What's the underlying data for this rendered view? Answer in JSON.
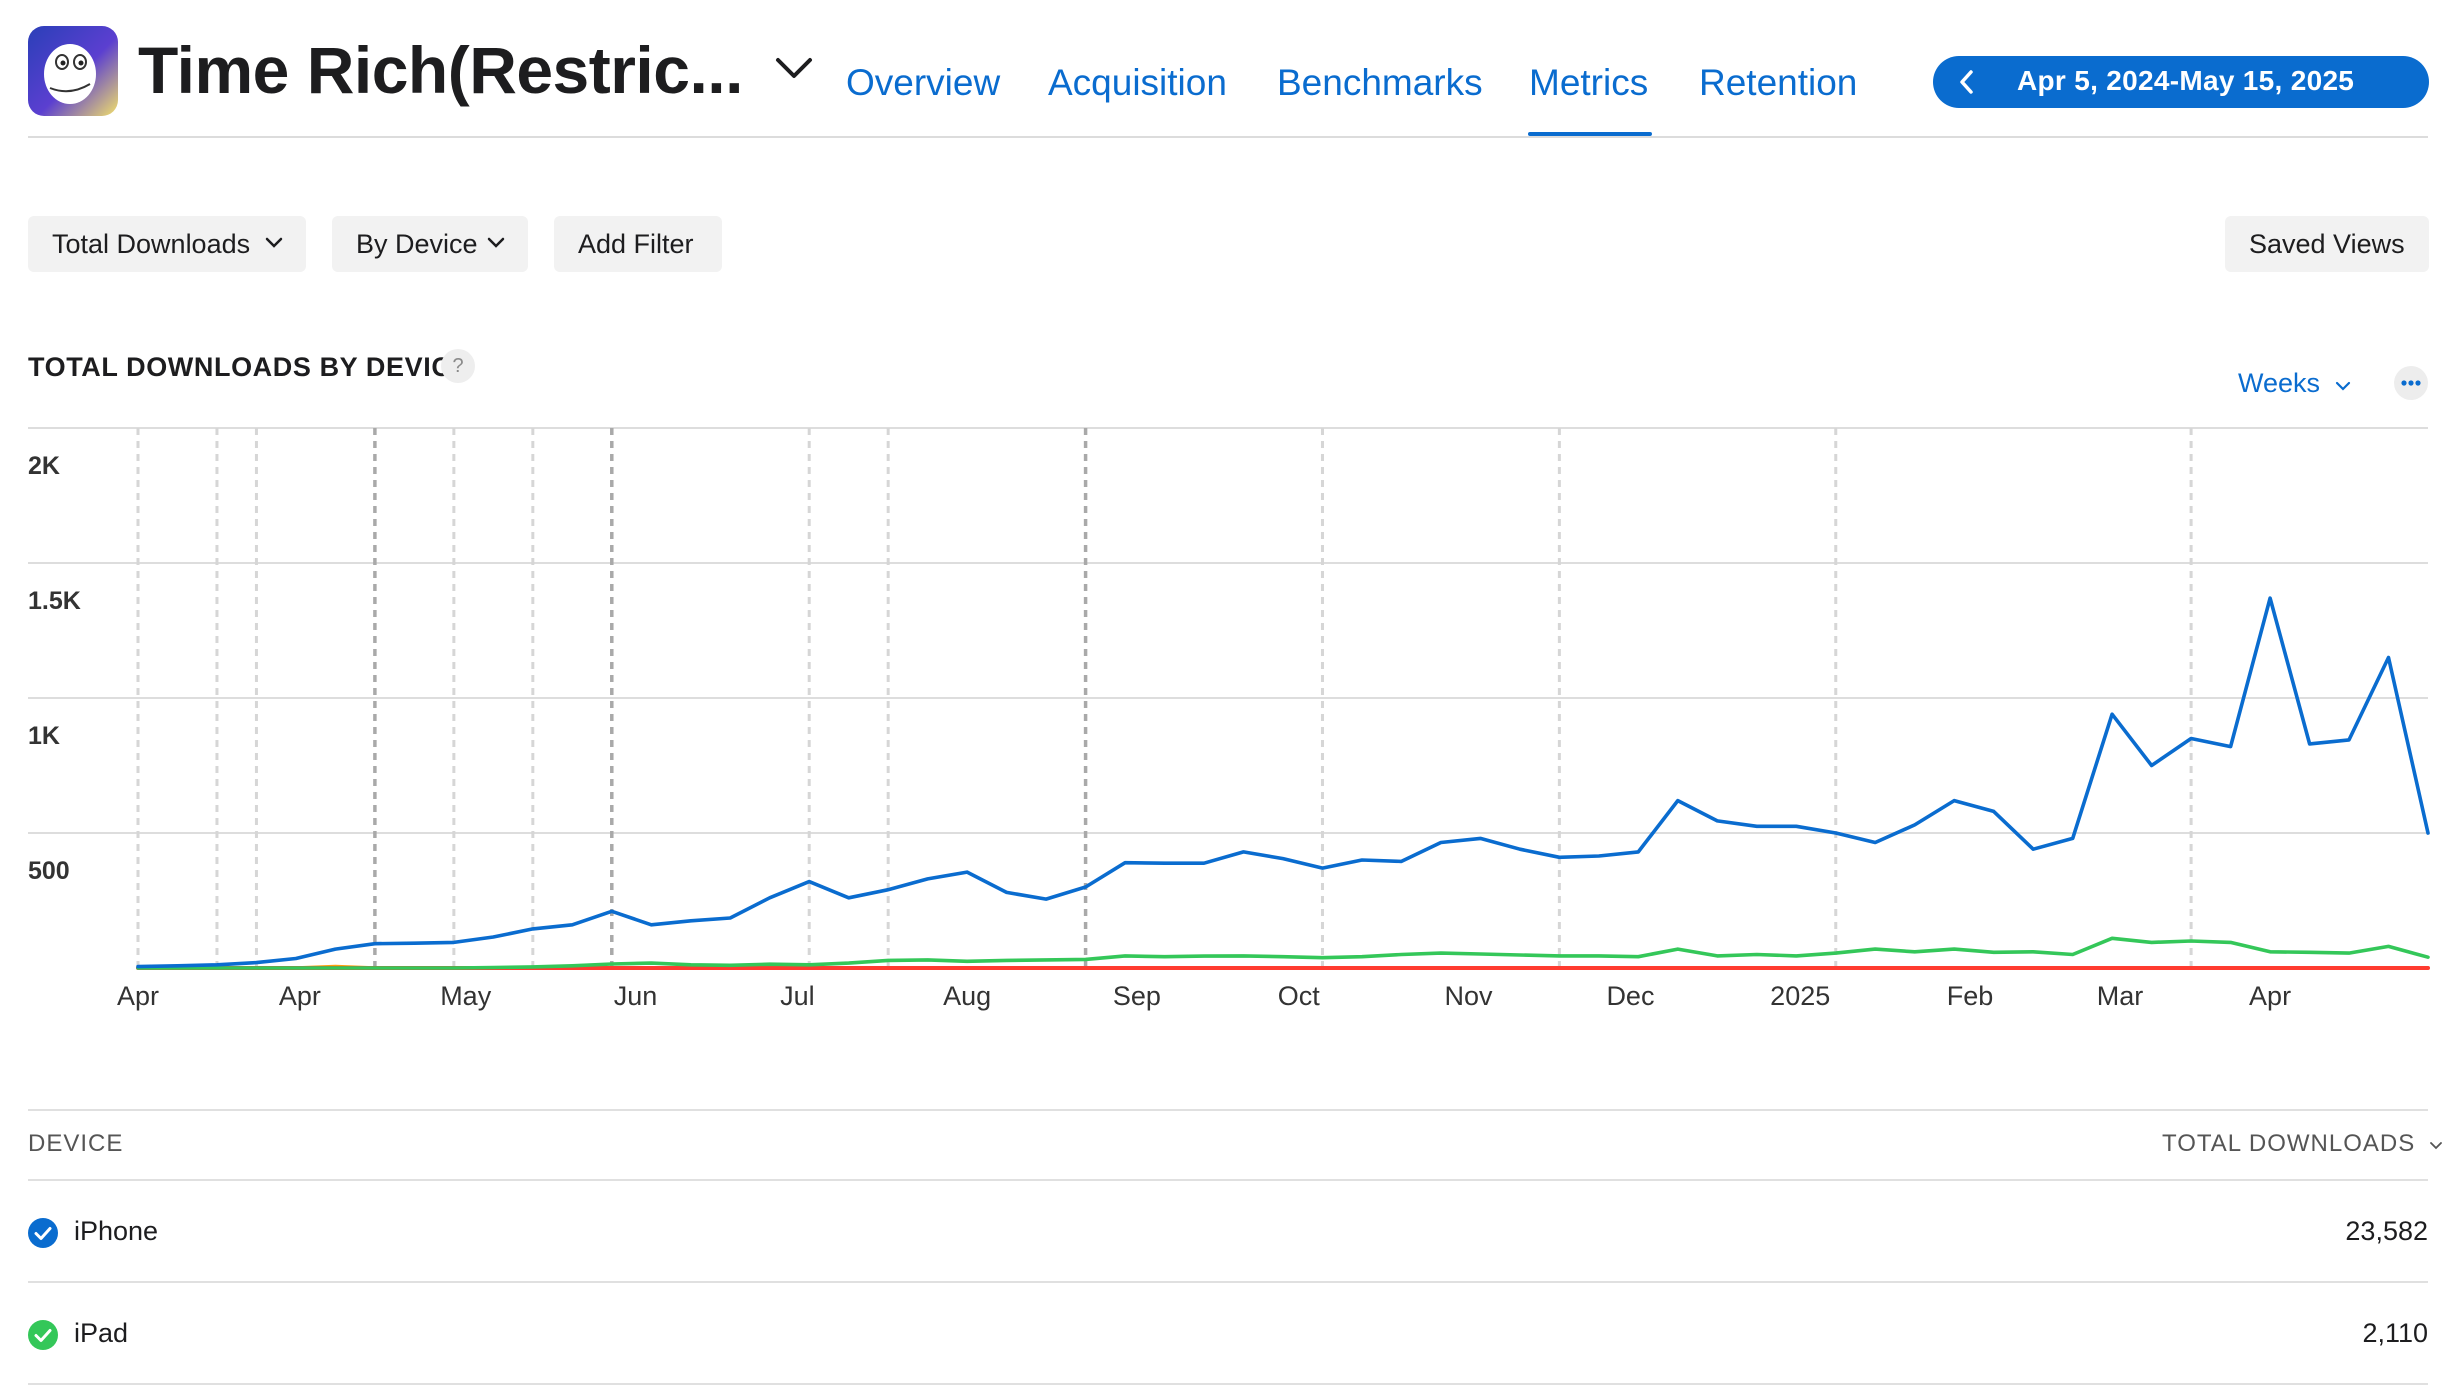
{
  "header": {
    "app_title": "Time Rich(Restric...",
    "tabs": [
      {
        "label": "Overview",
        "active": false
      },
      {
        "label": "Acquisition",
        "active": false
      },
      {
        "label": "Benchmarks",
        "active": false
      },
      {
        "label": "Metrics",
        "active": true
      },
      {
        "label": "Retention",
        "active": false
      }
    ],
    "date_range": "Apr 5, 2024-May 15, 2025"
  },
  "filters": {
    "measure": "Total Downloads",
    "group_by": "By Device",
    "add_filter": "Add Filter",
    "saved_views": "Saved Views"
  },
  "chart_header": {
    "title": "TOTAL DOWNLOADS BY DEVICE",
    "help": "?",
    "granularity": "Weeks"
  },
  "colors": {
    "accent": "#0a6ccf",
    "iphone": "#0a6ccf",
    "ipad": "#34c759",
    "other": "#ff3b30",
    "grid": "#dddddd"
  },
  "chart_data": {
    "type": "line",
    "title": "TOTAL DOWNLOADS BY DEVICE",
    "ylim": [
      0,
      2000
    ],
    "yticks": [
      {
        "v": 500,
        "label": "500"
      },
      {
        "v": 1000,
        "label": "1K"
      },
      {
        "v": 1500,
        "label": "1.5K"
      },
      {
        "v": 2000,
        "label": "2K"
      }
    ],
    "x_tick_labels": [
      "Apr",
      "Apr",
      "May",
      "Jun",
      "Jul",
      "Aug",
      "Sep",
      "Oct",
      "Nov",
      "Dec",
      "2025",
      "Feb",
      "Mar",
      "Apr"
    ],
    "x_tick_positions": [
      0,
      4.1,
      8.3,
      12.6,
      16.7,
      21,
      25.3,
      29.4,
      33.7,
      37.8,
      42.1,
      46.4,
      50.2,
      54
    ],
    "vertical_markers": [
      {
        "x": 0,
        "style": "light"
      },
      {
        "x": 2,
        "style": "light"
      },
      {
        "x": 3,
        "style": "light"
      },
      {
        "x": 6,
        "style": "dark"
      },
      {
        "x": 8,
        "style": "light"
      },
      {
        "x": 10,
        "style": "light"
      },
      {
        "x": 12,
        "style": "dark"
      },
      {
        "x": 17,
        "style": "light"
      },
      {
        "x": 19,
        "style": "light"
      },
      {
        "x": 24,
        "style": "dark"
      },
      {
        "x": 30,
        "style": "light"
      },
      {
        "x": 36,
        "style": "light"
      },
      {
        "x": 43,
        "style": "light"
      },
      {
        "x": 52,
        "style": "light"
      }
    ],
    "series": [
      {
        "name": "iPhone",
        "color": "#0a6ccf",
        "values": [
          5,
          8,
          12,
          20,
          35,
          70,
          90,
          92,
          95,
          115,
          145,
          160,
          210,
          160,
          175,
          185,
          260,
          320,
          260,
          290,
          330,
          355,
          280,
          255,
          300,
          390,
          388,
          388,
          430,
          405,
          370,
          400,
          395,
          465,
          480,
          440,
          410,
          415,
          430,
          620,
          545,
          525,
          525,
          500,
          465,
          530,
          620,
          580,
          440,
          480,
          940,
          750,
          850,
          820,
          1370,
          830,
          845,
          1150,
          500
        ]
      },
      {
        "name": "iPad",
        "color": "#34c759",
        "values": [
          0,
          0,
          0,
          0,
          0,
          0,
          0,
          0,
          0,
          2,
          4,
          8,
          15,
          18,
          12,
          10,
          14,
          12,
          18,
          28,
          30,
          25,
          28,
          30,
          32,
          45,
          42,
          44,
          45,
          42,
          38,
          42,
          50,
          55,
          52,
          48,
          45,
          45,
          42,
          70,
          45,
          50,
          45,
          55,
          70,
          60,
          70,
          58,
          60,
          50,
          110,
          95,
          100,
          95,
          60,
          58,
          55,
          80,
          40
        ]
      },
      {
        "name": "",
        "color": "#ff3b30",
        "values": [
          0,
          0,
          0,
          0,
          0,
          0,
          0,
          0,
          0,
          0,
          0,
          0,
          0,
          0,
          0,
          0,
          0,
          0,
          0,
          0,
          0,
          0,
          0,
          0,
          0,
          0,
          0,
          0,
          0,
          0,
          0,
          0,
          0,
          0,
          0,
          0,
          0,
          0,
          0,
          0,
          0,
          0,
          0,
          0,
          0,
          0,
          0,
          0,
          0,
          0,
          0,
          0,
          0,
          0,
          0,
          0,
          0,
          0,
          0
        ]
      },
      {
        "name": "",
        "color": "#ff9f0a",
        "values": [
          0,
          0,
          0,
          0,
          0,
          5,
          0,
          0,
          0,
          0,
          0,
          0,
          0,
          0,
          0,
          0,
          0,
          0,
          0,
          0,
          0,
          0,
          0,
          0,
          0,
          0,
          0,
          0,
          0,
          0,
          0,
          0,
          0,
          0,
          0,
          0,
          0,
          0,
          0,
          0,
          0,
          0,
          0,
          0,
          0,
          0,
          0,
          0,
          0,
          0,
          0,
          0,
          0,
          0,
          0,
          0,
          0,
          0,
          0
        ]
      }
    ]
  },
  "table": {
    "col_device": "DEVICE",
    "col_total": "TOTAL DOWNLOADS",
    "rows": [
      {
        "device": "iPhone",
        "total": "23,582"
      },
      {
        "device": "iPad",
        "total": "2,110"
      }
    ]
  }
}
